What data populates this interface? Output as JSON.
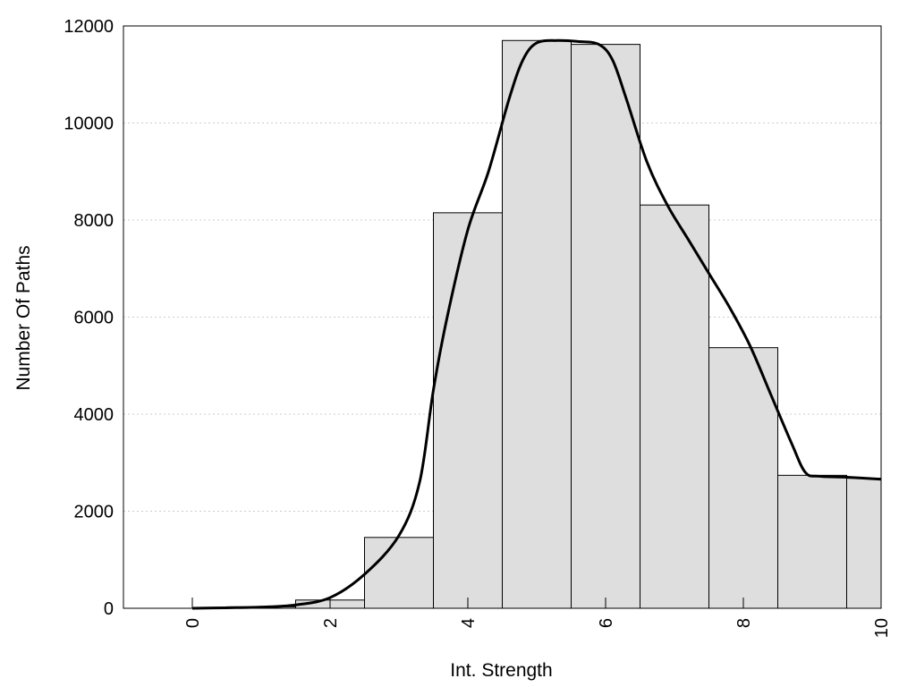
{
  "chart_data": {
    "type": "bar",
    "title": "",
    "xlabel": "Int. Strength",
    "ylabel": "Number Of Paths",
    "xlim": [
      -1,
      10
    ],
    "ylim": [
      0,
      12000
    ],
    "x_ticks": [
      "0",
      "2",
      "4",
      "6",
      "8",
      "10"
    ],
    "y_ticks": [
      "0",
      "2000",
      "4000",
      "6000",
      "8000",
      "10000",
      "12000"
    ],
    "grid": "horizontal dotted",
    "legend": "none",
    "bars": {
      "x": [
        0,
        1,
        2,
        3,
        4,
        5,
        6,
        7,
        8,
        9,
        10
      ],
      "values": [
        0,
        30,
        170,
        1460,
        8150,
        11700,
        11620,
        8310,
        5370,
        2740,
        2680
      ]
    },
    "curve": {
      "x": [
        0,
        0.5,
        1,
        1.5,
        2,
        2.5,
        3,
        3.3,
        3.5,
        3.7,
        4,
        4.3,
        4.6,
        4.8,
        5,
        5.3,
        5.6,
        5.9,
        6.1,
        6.3,
        6.6,
        6.9,
        7.2,
        7.5,
        7.8,
        8.1,
        8.4,
        8.7,
        8.9,
        9.1,
        9.5,
        10
      ],
      "values": [
        0,
        10,
        25,
        70,
        220,
        700,
        1500,
        2600,
        4500,
        6000,
        7800,
        9000,
        10500,
        11300,
        11650,
        11700,
        11680,
        11620,
        11300,
        10500,
        9200,
        8300,
        7600,
        6900,
        6200,
        5400,
        4400,
        3400,
        2800,
        2720,
        2700,
        2660
      ]
    },
    "colors": {
      "bar_fill": "#dedede",
      "bar_stroke": "#000000",
      "curve": "#000000",
      "grid": "#cccccc"
    }
  }
}
